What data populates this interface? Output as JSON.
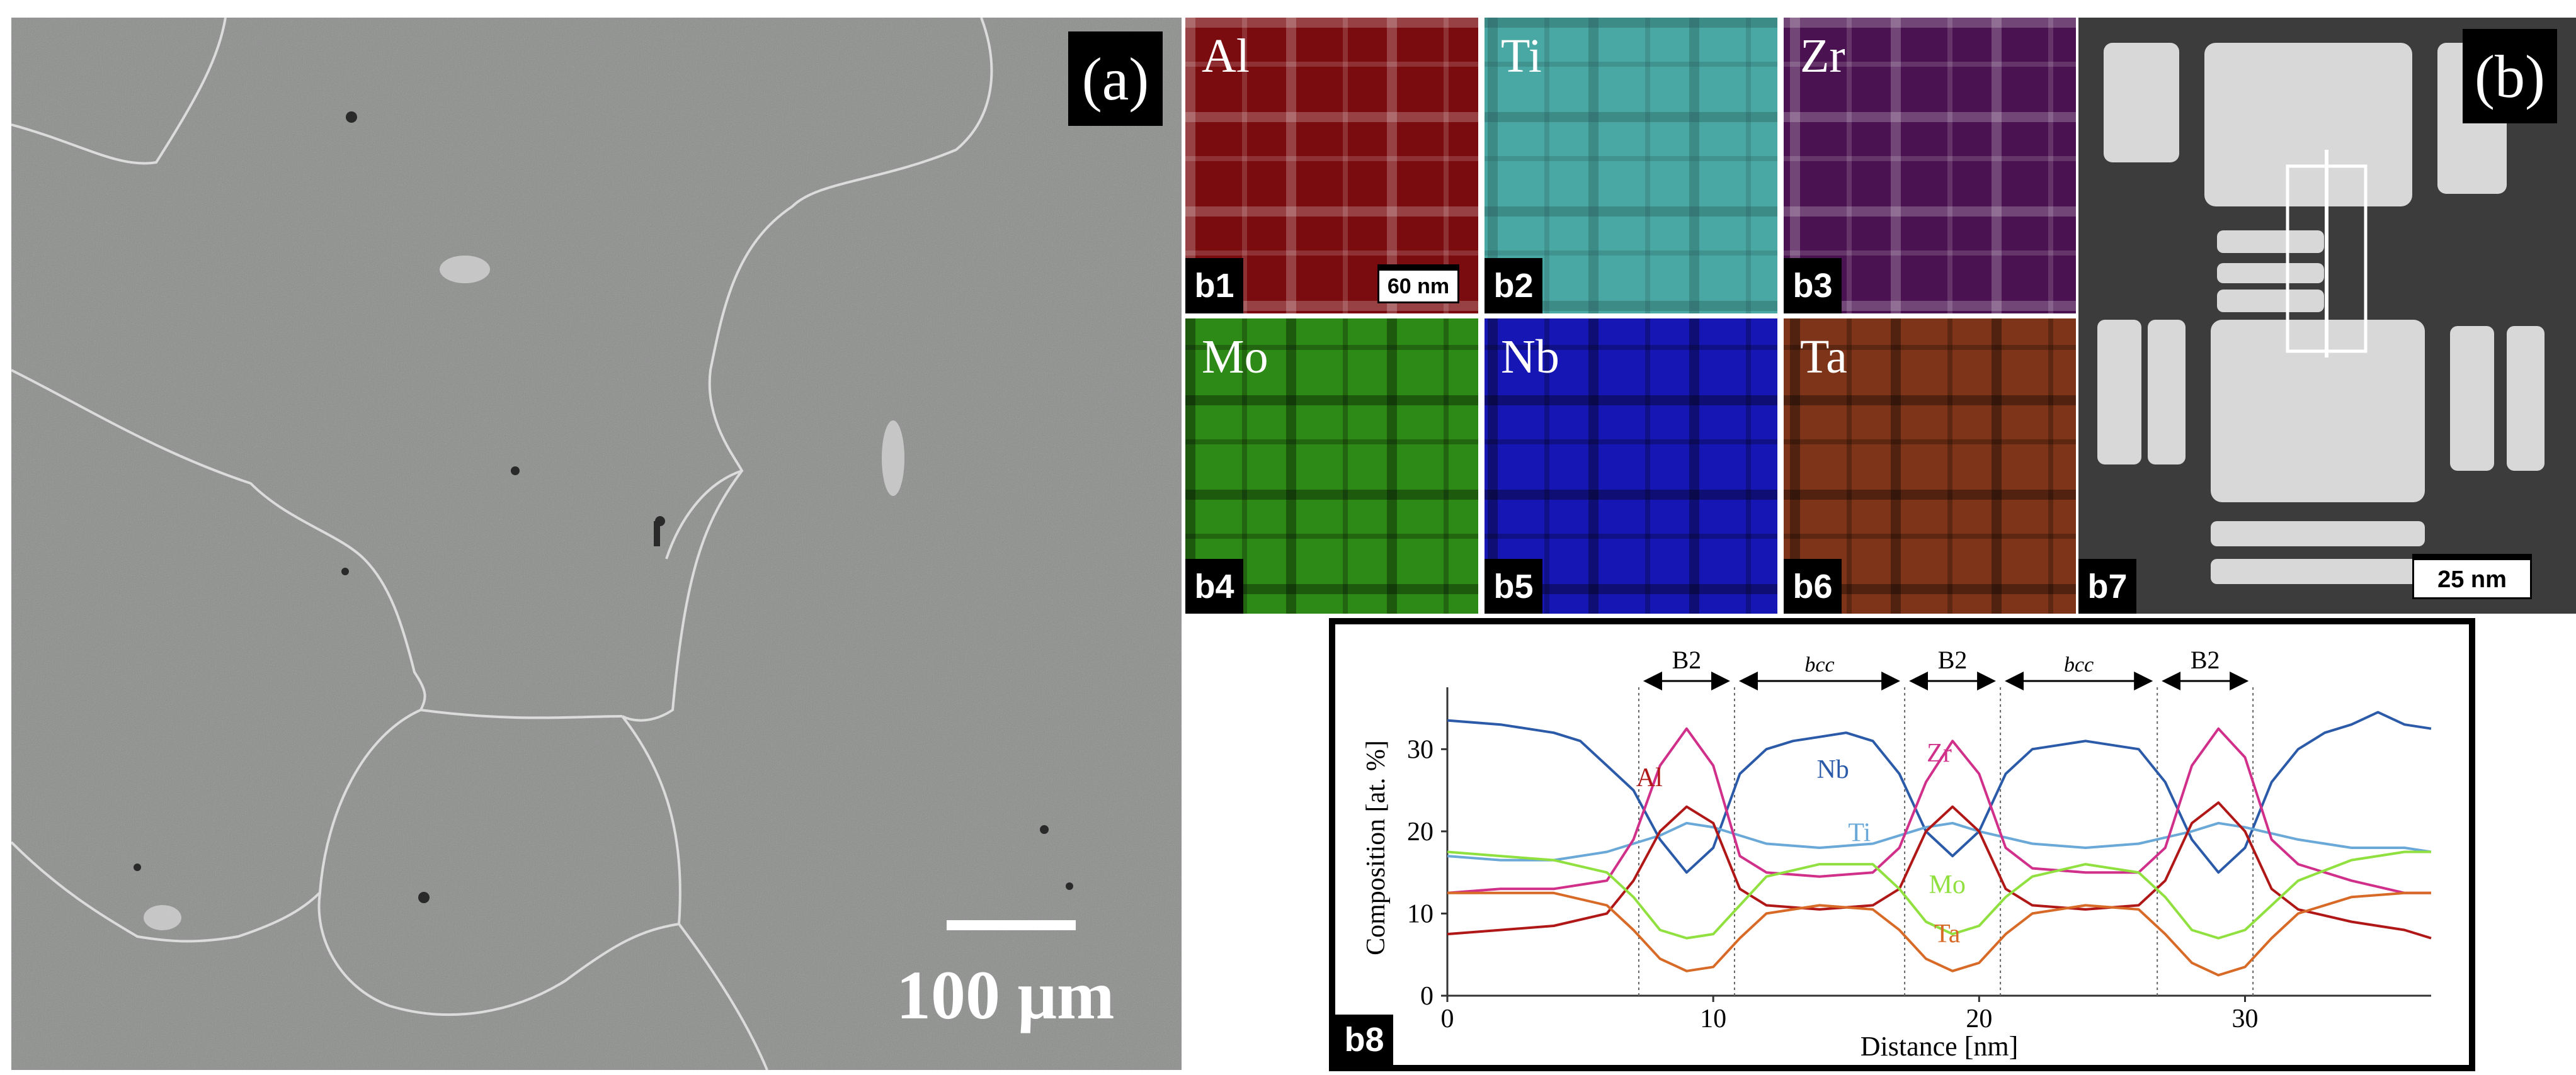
{
  "panel_a": {
    "label": "(a)",
    "scale_bar_text": "100 μm"
  },
  "panel_b": {
    "label": "(b)",
    "maps": [
      {
        "id": "b1",
        "element": "Al",
        "color": "#8a0a12",
        "scale_text": "60 nm"
      },
      {
        "id": "b2",
        "element": "Ti",
        "color": "#48a8a4"
      },
      {
        "id": "b3",
        "element": "Zr",
        "color": "#5a1560"
      },
      {
        "id": "b4",
        "element": "Mo",
        "color": "#2a8a16"
      },
      {
        "id": "b5",
        "element": "Nb",
        "color": "#1a1ab8"
      },
      {
        "id": "b6",
        "element": "Ta",
        "color": "#8a3a1a"
      }
    ],
    "haadf": {
      "id": "b7",
      "scale_text": "25 nm"
    },
    "profile_label": "b8"
  },
  "chart_data": {
    "type": "line",
    "xlabel": "Distance [nm]",
    "ylabel": "Composition [at. %]",
    "xlim": [
      0,
      37
    ],
    "ylim": [
      0,
      36
    ],
    "xticks": [
      0,
      10,
      20,
      30
    ],
    "yticks": [
      0,
      10,
      20,
      30
    ],
    "phase_boundaries": [
      7.2,
      10.8,
      17.2,
      20.8,
      26.7,
      30.3
    ],
    "phase_labels": [
      {
        "text": "B2",
        "from": 7.2,
        "to": 10.8
      },
      {
        "text": "bcc",
        "from": 10.8,
        "to": 17.2
      },
      {
        "text": "B2",
        "from": 17.2,
        "to": 20.8
      },
      {
        "text": "bcc",
        "from": 20.8,
        "to": 26.7
      },
      {
        "text": "B2",
        "from": 26.7,
        "to": 30.3
      }
    ],
    "series": [
      {
        "name": "Nb",
        "color": "#2a5aa8",
        "label_at": [
          14.5,
          26.5
        ],
        "x": [
          0,
          2,
          4,
          5,
          6,
          7,
          8,
          9,
          10,
          11,
          12,
          13,
          14,
          15,
          16,
          17,
          18,
          19,
          20,
          21,
          22,
          23,
          24,
          25,
          26,
          27,
          28,
          29,
          30,
          31,
          32,
          33,
          34,
          35,
          36,
          37
        ],
        "y": [
          33.5,
          33,
          32,
          31,
          28,
          25,
          19,
          15,
          18,
          27,
          30,
          31,
          31.5,
          32,
          31,
          27,
          20,
          17,
          20,
          27,
          30,
          30.5,
          31,
          30.5,
          30,
          26,
          19,
          15,
          18,
          26,
          30,
          32,
          33,
          34.5,
          33,
          32.5
        ]
      },
      {
        "name": "Ti",
        "color": "#6aa8d8",
        "label_at": [
          15.5,
          18.8
        ],
        "x": [
          0,
          2,
          4,
          6,
          8,
          9,
          10,
          12,
          14,
          16,
          18,
          19,
          20,
          22,
          24,
          26,
          28,
          29,
          30,
          32,
          34,
          36,
          37
        ],
        "y": [
          17,
          16.5,
          16.5,
          17.5,
          19.5,
          21,
          20.5,
          18.5,
          18,
          18.5,
          20.5,
          21,
          20,
          18.5,
          18,
          18.5,
          20,
          21,
          20.5,
          19,
          18,
          18,
          17.5
        ]
      },
      {
        "name": "Zr",
        "color": "#d0308a",
        "label_at": [
          18.5,
          28.5
        ],
        "x": [
          0,
          2,
          4,
          6,
          7,
          8,
          9,
          10,
          11,
          12,
          14,
          16,
          17,
          18,
          19,
          20,
          21,
          22,
          24,
          26,
          27,
          28,
          29,
          30,
          31,
          32,
          34,
          36,
          37
        ],
        "y": [
          12.5,
          13,
          13,
          14,
          19,
          28,
          32.5,
          28,
          17,
          15,
          14.5,
          15,
          18,
          26,
          31,
          27,
          18,
          15.5,
          15,
          15,
          18,
          28,
          32.5,
          29,
          19,
          16,
          14,
          12.5,
          12.5
        ]
      },
      {
        "name": "Al",
        "color": "#b01818",
        "label_at": [
          7.6,
          25.5
        ],
        "x": [
          0,
          2,
          4,
          6,
          7,
          8,
          9,
          10,
          11,
          12,
          14,
          16,
          17,
          18,
          19,
          20,
          21,
          22,
          24,
          26,
          27,
          28,
          29,
          30,
          31,
          32,
          34,
          36,
          37
        ],
        "y": [
          7.5,
          8,
          8.5,
          10,
          14,
          20,
          23,
          21,
          13,
          11,
          10.5,
          11,
          13,
          20,
          23,
          20,
          13,
          11,
          10.5,
          11,
          14,
          21,
          23.5,
          20,
          13,
          10.5,
          9,
          8,
          7
        ]
      },
      {
        "name": "Mo",
        "color": "#90e040",
        "label_at": [
          18.8,
          12.5
        ],
        "x": [
          0,
          2,
          4,
          6,
          7,
          8,
          9,
          10,
          11,
          12,
          14,
          16,
          17,
          18,
          19,
          20,
          21,
          22,
          24,
          26,
          27,
          28,
          29,
          30,
          31,
          32,
          34,
          36,
          37
        ],
        "y": [
          17.5,
          17,
          16.5,
          15,
          12,
          8,
          7,
          7.5,
          11,
          14.5,
          16,
          16,
          13,
          9,
          7.5,
          8.5,
          12,
          14.5,
          16,
          15,
          12,
          8,
          7,
          8,
          11,
          14,
          16.5,
          17.5,
          17.5
        ]
      },
      {
        "name": "Ta",
        "color": "#d86a28",
        "label_at": [
          18.8,
          6.5
        ],
        "x": [
          0,
          2,
          4,
          6,
          7,
          8,
          9,
          10,
          11,
          12,
          14,
          16,
          17,
          18,
          19,
          20,
          21,
          22,
          24,
          26,
          27,
          28,
          29,
          30,
          31,
          32,
          34,
          36,
          37
        ],
        "y": [
          12.5,
          12.5,
          12.5,
          11,
          8,
          4.5,
          3,
          3.5,
          7,
          10,
          11,
          10.5,
          8,
          4.5,
          3,
          4,
          7.5,
          10,
          11,
          10.5,
          7.5,
          4,
          2.5,
          3.5,
          7,
          10,
          12,
          12.5,
          12.5
        ]
      }
    ]
  }
}
